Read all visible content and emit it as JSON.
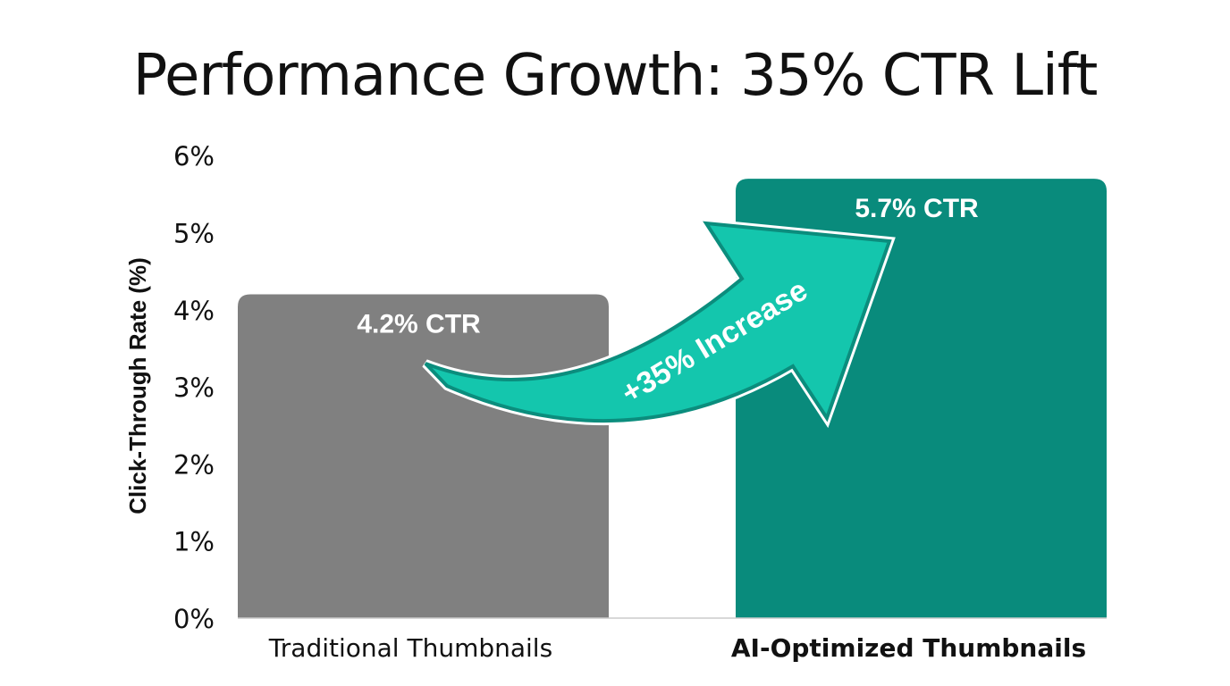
{
  "chart_data": {
    "type": "bar",
    "title": "Performance Growth: 35% CTR Lift",
    "xlabel": "",
    "ylabel": "Click-Through Rate (%)",
    "ylim": [
      0,
      6
    ],
    "yticks": [
      "0%",
      "1%",
      "2%",
      "3%",
      "4%",
      "5%",
      "6%"
    ],
    "categories": [
      "Traditional Thumbnails",
      "AI-Optimized Thumbnails"
    ],
    "values": [
      4.2,
      5.7
    ],
    "data_labels": [
      "4.2% CTR",
      "5.7% CTR"
    ],
    "colors": [
      "#808080",
      "#098b7c"
    ],
    "annotation": "+35% Increase",
    "annotation_color": "#14c6ad",
    "grid": false
  }
}
